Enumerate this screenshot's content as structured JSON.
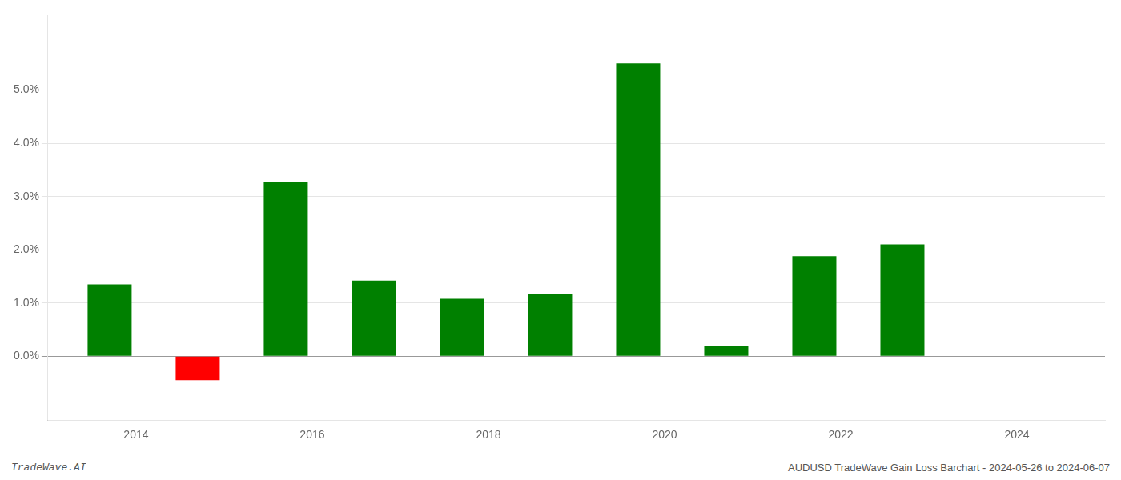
{
  "chart_data": {
    "type": "bar",
    "x": [
      2013.7,
      2014.7,
      2015.7,
      2016.7,
      2017.7,
      2018.7,
      2019.7,
      2020.7,
      2021.7,
      2022.7
    ],
    "values": [
      0.0135,
      -0.0045,
      0.0328,
      0.0142,
      0.0108,
      0.0117,
      0.055,
      0.0019,
      0.0188,
      0.021
    ],
    "colors": [
      "#008000",
      "#ff0000",
      "#008000",
      "#008000",
      "#008000",
      "#008000",
      "#008000",
      "#008000",
      "#008000",
      "#008000"
    ],
    "xlim": [
      2013.0,
      2025.0
    ],
    "xticks": [
      2014,
      2016,
      2018,
      2020,
      2022,
      2024
    ],
    "ylim": [
      -0.012,
      0.064
    ],
    "yticks": [
      {
        "value": 0.0,
        "label": "0.0%"
      },
      {
        "value": 0.01,
        "label": "1.0%"
      },
      {
        "value": 0.02,
        "label": "2.0%"
      },
      {
        "value": 0.03,
        "label": "3.0%"
      },
      {
        "value": 0.04,
        "label": "4.0%"
      },
      {
        "value": 0.05,
        "label": "5.0%"
      }
    ],
    "grid": true,
    "annotations": [
      "TradeWave.AI",
      "AUDUSD TradeWave Gain Loss Barchart - 2024-05-26 to 2024-06-07"
    ]
  }
}
